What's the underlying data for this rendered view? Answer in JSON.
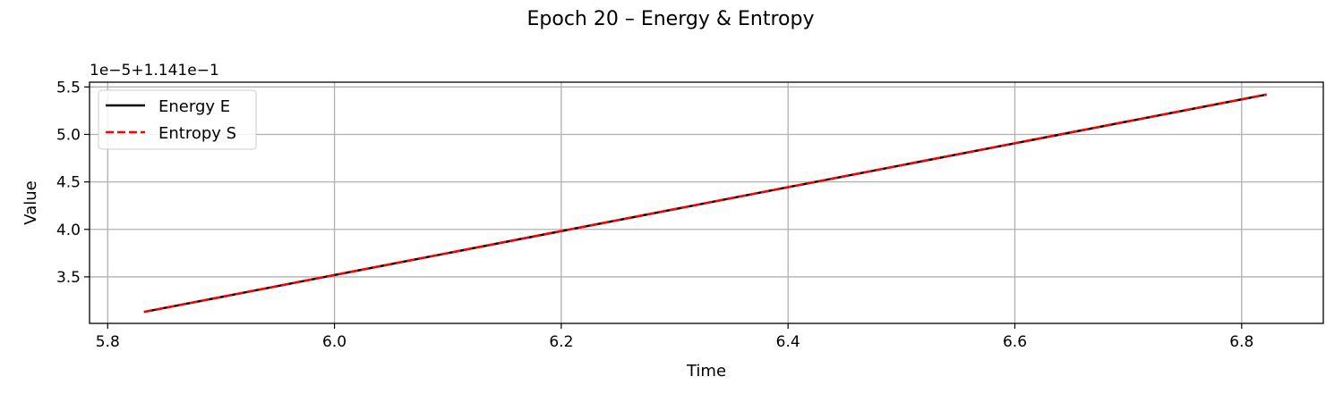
{
  "chart_data": {
    "type": "line",
    "title": "Epoch 20 – Energy & Entropy",
    "xlabel": "Time",
    "ylabel": "Value",
    "offset_label": "1e−5+1.141e−1",
    "xlim": [
      5.784,
      6.872
    ],
    "ylim": [
      3.01,
      5.55
    ],
    "x_ticks": [
      5.8,
      6.0,
      6.2,
      6.4,
      6.6,
      6.8
    ],
    "x_tick_labels": [
      "5.8",
      "6.0",
      "6.2",
      "6.4",
      "6.6",
      "6.8"
    ],
    "y_ticks": [
      3.5,
      4.0,
      4.5,
      5.0,
      5.5
    ],
    "y_tick_labels": [
      "3.5",
      "4.0",
      "4.5",
      "5.0",
      "5.5"
    ],
    "y_units_note": "y values are in units of 1e-5 above 0.1141",
    "grid": true,
    "legend_position": "upper-left",
    "series": [
      {
        "name": "Energy E",
        "color": "#000000",
        "style": "solid",
        "x": [
          5.832,
          6.822
        ],
        "y": [
          3.13,
          5.42
        ]
      },
      {
        "name": "Entropy S",
        "color": "#ff0000",
        "style": "dashed",
        "x": [
          5.832,
          6.822
        ],
        "y": [
          3.13,
          5.42
        ]
      }
    ]
  }
}
